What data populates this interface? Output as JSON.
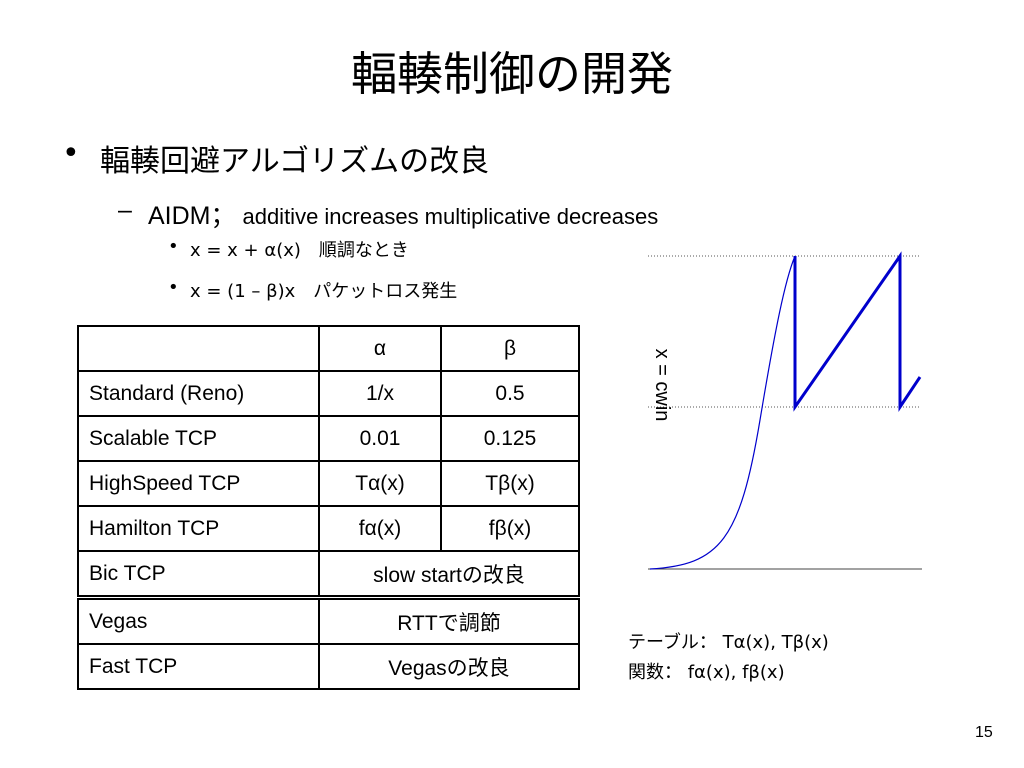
{
  "title": "輻輳制御の開発",
  "bullet": "輻輳回避アルゴリズムの改良",
  "sub_bullet": {
    "label": "AIDM；",
    "text": "additive increases multiplicative decreases"
  },
  "sub_sub_bullets": [
    "x = x + α(x)　順調なとき",
    "x = (1 – β)x　パケットロス発生"
  ],
  "table": {
    "columns": [
      "α",
      "β"
    ],
    "rows": [
      [
        "Standard (Reno)",
        "1/x",
        "0.5"
      ],
      [
        "Scalable TCP",
        "0.01",
        "0.125"
      ],
      [
        "HighSpeed TCP",
        "Tα(x)",
        "Tβ(x)"
      ],
      [
        "Hamilton TCP",
        "fα(x)",
        "fβ(x)"
      ],
      [
        "Bic TCP",
        "slow startの改良"
      ],
      [
        "Vegas",
        "RTTで調節"
      ],
      [
        "Fast TCP",
        "Vegasの改良"
      ]
    ]
  },
  "diagram": {
    "axis_label": "x = cwin"
  },
  "notes": [
    "テーブル： Tα(x), Tβ(x)",
    "関数： fα(x), fβ(x)"
  ],
  "page_number": "15"
}
